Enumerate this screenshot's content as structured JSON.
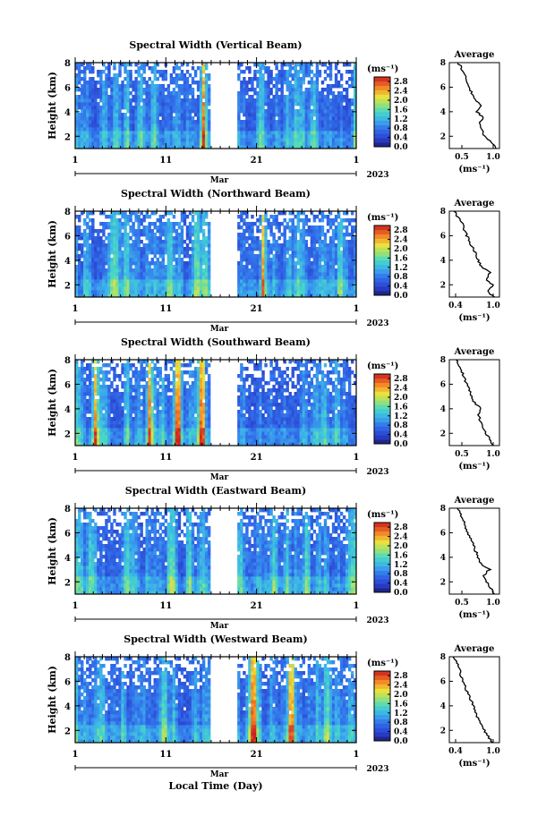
{
  "chart_data": [
    {
      "type": "heatmap",
      "title": "Spectral Width (Vertical Beam)",
      "ylabel": "Height (km)",
      "ylim": [
        1,
        8
      ],
      "yticks": [
        "2",
        "4",
        "6",
        "8"
      ],
      "xticks": [
        "1",
        "11",
        "21",
        "1"
      ],
      "xlim": [
        "2023-03-01",
        "2023-04-01"
      ],
      "month_label": "Mar",
      "year_label": "2023",
      "colorbar": {
        "unit_label": "(ms⁻¹)",
        "range": [
          0.0,
          3.0
        ],
        "tick_labels": [
          "2.8",
          "2.4",
          "2.0",
          "1.6",
          "1.2",
          "0.8",
          "0.4",
          "0.0"
        ]
      },
      "data_gap": [
        "2023-03-16",
        "2023-03-19"
      ],
      "average_profile": {
        "title": "Average",
        "xlabel": "(ms⁻¹)",
        "xtick_labels": [
          "0.5",
          "1.0"
        ],
        "xlim": [
          0.3,
          1.1
        ],
        "yticks": [
          "2",
          "4",
          "6",
          "8"
        ],
        "height_km": [
          1.0,
          1.5,
          2.0,
          2.5,
          3.0,
          3.5,
          4.0,
          4.5,
          5.0,
          5.5,
          6.0,
          6.5,
          7.0,
          7.5,
          8.0
        ],
        "width_ms": [
          1.04,
          0.98,
          0.86,
          0.82,
          0.78,
          0.84,
          0.74,
          0.8,
          0.7,
          0.66,
          0.62,
          0.58,
          0.54,
          0.5,
          0.44
        ]
      }
    },
    {
      "type": "heatmap",
      "title": "Spectral Width (Northward Beam)",
      "ylabel": "Height (km)",
      "ylim": [
        1,
        8
      ],
      "yticks": [
        "2",
        "4",
        "6",
        "8"
      ],
      "xticks": [
        "1",
        "11",
        "21",
        "1"
      ],
      "xlim": [
        "2023-03-01",
        "2023-04-01"
      ],
      "month_label": "Mar",
      "year_label": "2023",
      "colorbar": {
        "unit_label": "(ms⁻¹)",
        "range": [
          0.0,
          3.0
        ],
        "tick_labels": [
          "2.8",
          "2.4",
          "2.0",
          "1.6",
          "1.2",
          "0.8",
          "0.4",
          "0.0"
        ]
      },
      "data_gap": [
        "2023-03-16",
        "2023-03-19"
      ],
      "average_profile": {
        "title": "Average",
        "xlabel": "(ms⁻¹)",
        "xtick_labels": [
          "0.4",
          "1.0"
        ],
        "xlim": [
          0.3,
          1.1
        ],
        "yticks": [
          "2",
          "4",
          "6",
          "8"
        ],
        "height_km": [
          1.0,
          1.5,
          2.0,
          2.5,
          3.0,
          3.5,
          4.0,
          4.5,
          5.0,
          5.5,
          6.0,
          6.5,
          7.0,
          7.5,
          8.0
        ],
        "width_ms": [
          1.02,
          0.9,
          1.0,
          0.88,
          0.96,
          0.8,
          0.76,
          0.72,
          0.68,
          0.62,
          0.58,
          0.54,
          0.5,
          0.44,
          0.38
        ]
      }
    },
    {
      "type": "heatmap",
      "title": "Spectral Width (Southward Beam)",
      "ylabel": "Height (km)",
      "ylim": [
        1,
        8
      ],
      "yticks": [
        "2",
        "4",
        "6",
        "8"
      ],
      "xticks": [
        "1",
        "11",
        "21",
        "1"
      ],
      "xlim": [
        "2023-03-01",
        "2023-04-01"
      ],
      "month_label": "Mar",
      "year_label": "2023",
      "colorbar": {
        "unit_label": "(ms⁻¹)",
        "range": [
          0.0,
          3.0
        ],
        "tick_labels": [
          "2.8",
          "2.4",
          "2.0",
          "1.6",
          "1.2",
          "0.8",
          "0.4",
          "0.0"
        ]
      },
      "data_gap": [
        "2023-03-16",
        "2023-03-19"
      ],
      "average_profile": {
        "title": "Average",
        "xlabel": "(ms⁻¹)",
        "xtick_labels": [
          "0.5",
          "1.0"
        ],
        "xlim": [
          0.3,
          1.1
        ],
        "yticks": [
          "2",
          "4",
          "6",
          "8"
        ],
        "height_km": [
          1.0,
          1.5,
          2.0,
          2.5,
          3.0,
          3.5,
          4.0,
          4.5,
          5.0,
          5.5,
          6.0,
          6.5,
          7.0,
          7.5,
          8.0
        ],
        "width_ms": [
          1.0,
          0.94,
          0.88,
          0.84,
          0.8,
          0.76,
          0.8,
          0.7,
          0.66,
          0.62,
          0.58,
          0.54,
          0.5,
          0.46,
          0.42
        ]
      }
    },
    {
      "type": "heatmap",
      "title": "Spectral Width (Eastward Beam)",
      "ylabel": "Height (km)",
      "ylim": [
        1,
        8
      ],
      "yticks": [
        "2",
        "4",
        "6",
        "8"
      ],
      "xticks": [
        "1",
        "11",
        "21",
        "1"
      ],
      "xlim": [
        "2023-03-01",
        "2023-04-01"
      ],
      "month_label": "Mar",
      "year_label": "2023",
      "colorbar": {
        "unit_label": "(ms⁻¹)",
        "range": [
          0.0,
          3.0
        ],
        "tick_labels": [
          "2.8",
          "2.4",
          "2.0",
          "1.6",
          "1.2",
          "0.8",
          "0.4",
          "0.0"
        ]
      },
      "data_gap": [
        "2023-03-16",
        "2023-03-19"
      ],
      "average_profile": {
        "title": "Average",
        "xlabel": "(ms⁻¹)",
        "xtick_labels": [
          "0.5",
          "1.0"
        ],
        "xlim": [
          0.3,
          1.1
        ],
        "yticks": [
          "2",
          "4",
          "6",
          "8"
        ],
        "height_km": [
          1.0,
          1.5,
          2.0,
          2.5,
          3.0,
          3.5,
          4.0,
          4.5,
          5.0,
          5.5,
          6.0,
          6.5,
          7.0,
          7.5,
          8.0
        ],
        "width_ms": [
          1.02,
          0.96,
          0.9,
          0.84,
          0.94,
          0.8,
          0.76,
          0.72,
          0.68,
          0.64,
          0.6,
          0.56,
          0.52,
          0.48,
          0.44
        ]
      }
    },
    {
      "type": "heatmap",
      "title": "Spectral Width (Westward Beam)",
      "ylabel": "Height (km)",
      "ylim": [
        1,
        8
      ],
      "yticks": [
        "2",
        "4",
        "6",
        "8"
      ],
      "xticks": [
        "1",
        "11",
        "21",
        "1"
      ],
      "xlim": [
        "2023-03-01",
        "2023-04-01"
      ],
      "month_label": "Mar",
      "year_label": "2023",
      "xlabel": "Local Time (Day)",
      "colorbar": {
        "unit_label": "(ms⁻¹)",
        "range": [
          0.0,
          3.0
        ],
        "tick_labels": [
          "2.8",
          "2.4",
          "2.0",
          "1.6",
          "1.2",
          "0.8",
          "0.4",
          "0.0"
        ]
      },
      "data_gap": [
        "2023-03-16",
        "2023-03-19"
      ],
      "average_profile": {
        "title": "Average",
        "xlabel": "(ms⁻¹)",
        "xtick_labels": [
          "0.4",
          "1.0"
        ],
        "xlim": [
          0.3,
          1.1
        ],
        "yticks": [
          "2",
          "4",
          "6",
          "8"
        ],
        "height_km": [
          1.0,
          1.5,
          2.0,
          2.5,
          3.0,
          3.5,
          4.0,
          4.5,
          5.0,
          5.5,
          6.0,
          6.5,
          7.0,
          7.5,
          8.0
        ],
        "width_ms": [
          1.0,
          0.92,
          0.86,
          0.8,
          0.76,
          0.72,
          0.68,
          0.64,
          0.6,
          0.56,
          0.52,
          0.48,
          0.46,
          0.42,
          0.38
        ]
      }
    }
  ]
}
